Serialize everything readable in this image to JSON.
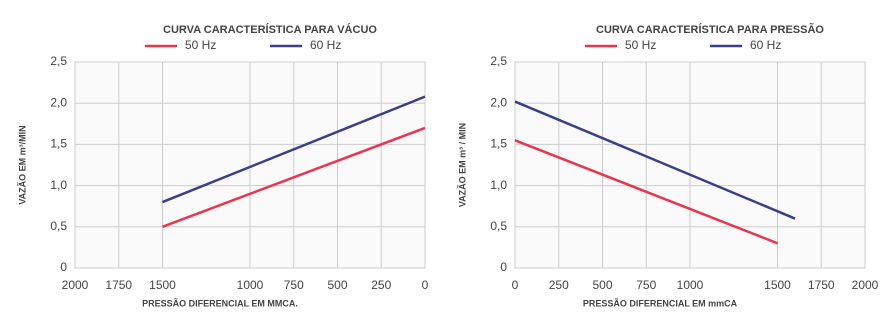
{
  "chart_data": [
    {
      "type": "line",
      "title": "CURVA CARACTERÍSTICA PARA VÁCUO",
      "title_color": "#2b2f7e",
      "label_color": "#2b2f7e",
      "x_label": "PRESSÃO DIFERENCIAL EM MMCA.",
      "y_label": "VAZÃO EM m³/MIN",
      "series": [
        {
          "name": "50 Hz",
          "color": "#e8364f",
          "x": [
            1500,
            0
          ],
          "values": [
            0.5,
            1.7
          ]
        },
        {
          "name": "60 Hz",
          "color": "#3b3f86",
          "x": [
            1500,
            0
          ],
          "values": [
            0.8,
            2.08
          ]
        }
      ],
      "xlim": [
        2000,
        0
      ],
      "xticks": [
        2000,
        1750,
        1500,
        1000,
        750,
        500,
        250,
        0
      ],
      "ylim": [
        0,
        2.5
      ],
      "yticks": [
        0,
        {
          "value": 0.5,
          "label": "0,5"
        },
        {
          "value": 1,
          "label": "1,0"
        },
        {
          "value": 1.5,
          "label": "1,5"
        },
        {
          "value": 2,
          "label": "2,0"
        },
        {
          "value": 2.5,
          "label": "2,5"
        }
      ],
      "grid": true
    },
    {
      "type": "line",
      "title": "CURVA CARACTERÍSTICA PARA PRESSÃO",
      "title_color": "#e8243c",
      "label_color": "#e8243c",
      "x_label": "PRESSÃO DIFERENCIAL EM mmCA",
      "y_label": "VAZÃO EM m³ / MIN",
      "series": [
        {
          "name": "50 Hz",
          "color": "#e8364f",
          "x": [
            0,
            1500
          ],
          "values": [
            1.55,
            0.3
          ]
        },
        {
          "name": "60 Hz",
          "color": "#3b3f86",
          "x": [
            0,
            1600
          ],
          "values": [
            2.02,
            0.6
          ]
        }
      ],
      "xlim": [
        0,
        2000
      ],
      "xticks": [
        0,
        250,
        500,
        750,
        1000,
        1500,
        1750,
        2000
      ],
      "ylim": [
        0,
        2.5
      ],
      "yticks": [
        0,
        {
          "value": 0.5,
          "label": "0,5"
        },
        {
          "value": 1,
          "label": "1,0"
        },
        {
          "value": 1.5,
          "label": "1,5"
        },
        {
          "value": 2,
          "label": "2,0"
        },
        {
          "value": 2.5,
          "label": "2,5"
        }
      ],
      "grid": true
    }
  ]
}
